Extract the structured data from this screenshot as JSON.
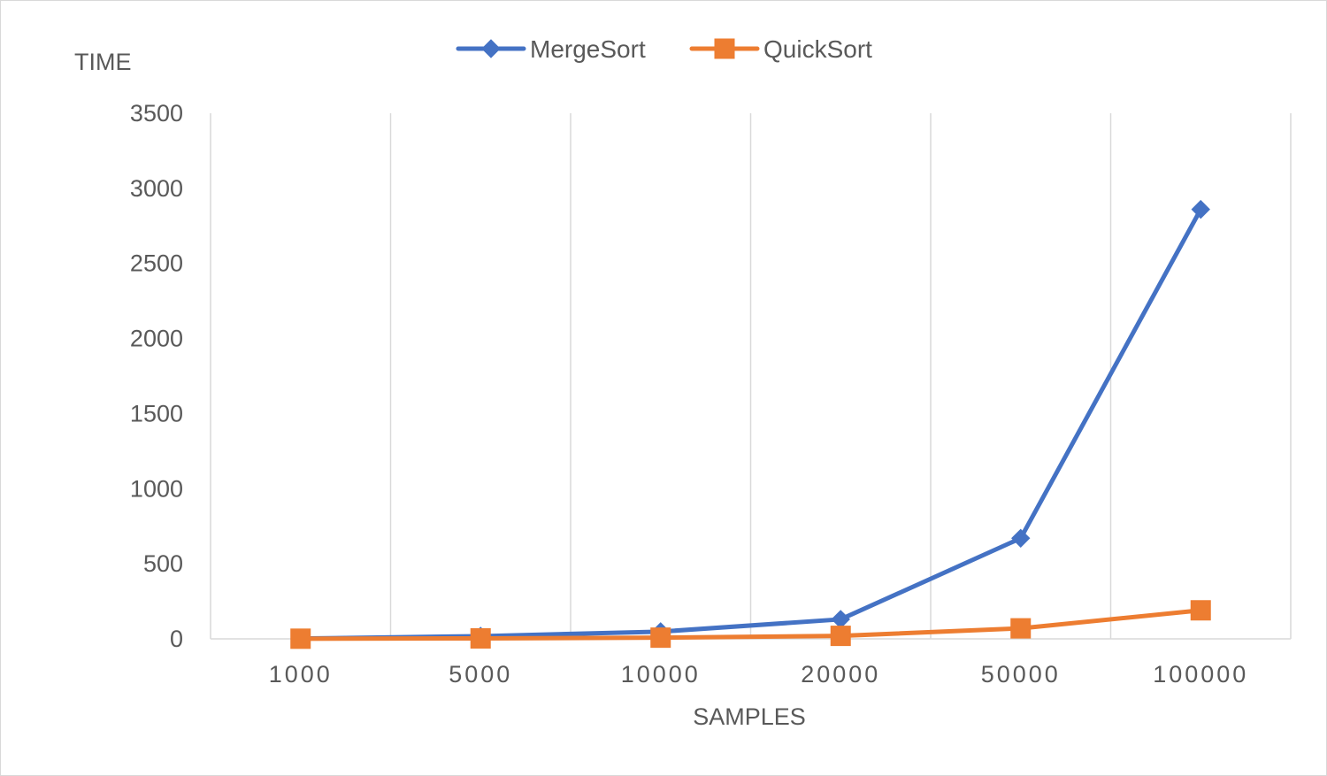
{
  "chart_data": {
    "type": "line",
    "title": "",
    "xlabel": "SAMPLES",
    "ylabel": "TIME",
    "categories": [
      "1000",
      "5000",
      "10000",
      "20000",
      "50000",
      "100000"
    ],
    "ylim": [
      0,
      3500
    ],
    "yticks": [
      0,
      500,
      1000,
      1500,
      2000,
      2500,
      3000,
      3500
    ],
    "grid": "vertical",
    "legend_position": "top",
    "series": [
      {
        "name": "MergeSort",
        "color": "#4472C4",
        "marker": "diamond",
        "values": [
          2,
          18,
          48,
          130,
          670,
          2860
        ]
      },
      {
        "name": "QuickSort",
        "color": "#ED7D31",
        "marker": "square",
        "values": [
          1,
          3,
          8,
          20,
          70,
          190
        ]
      }
    ]
  }
}
